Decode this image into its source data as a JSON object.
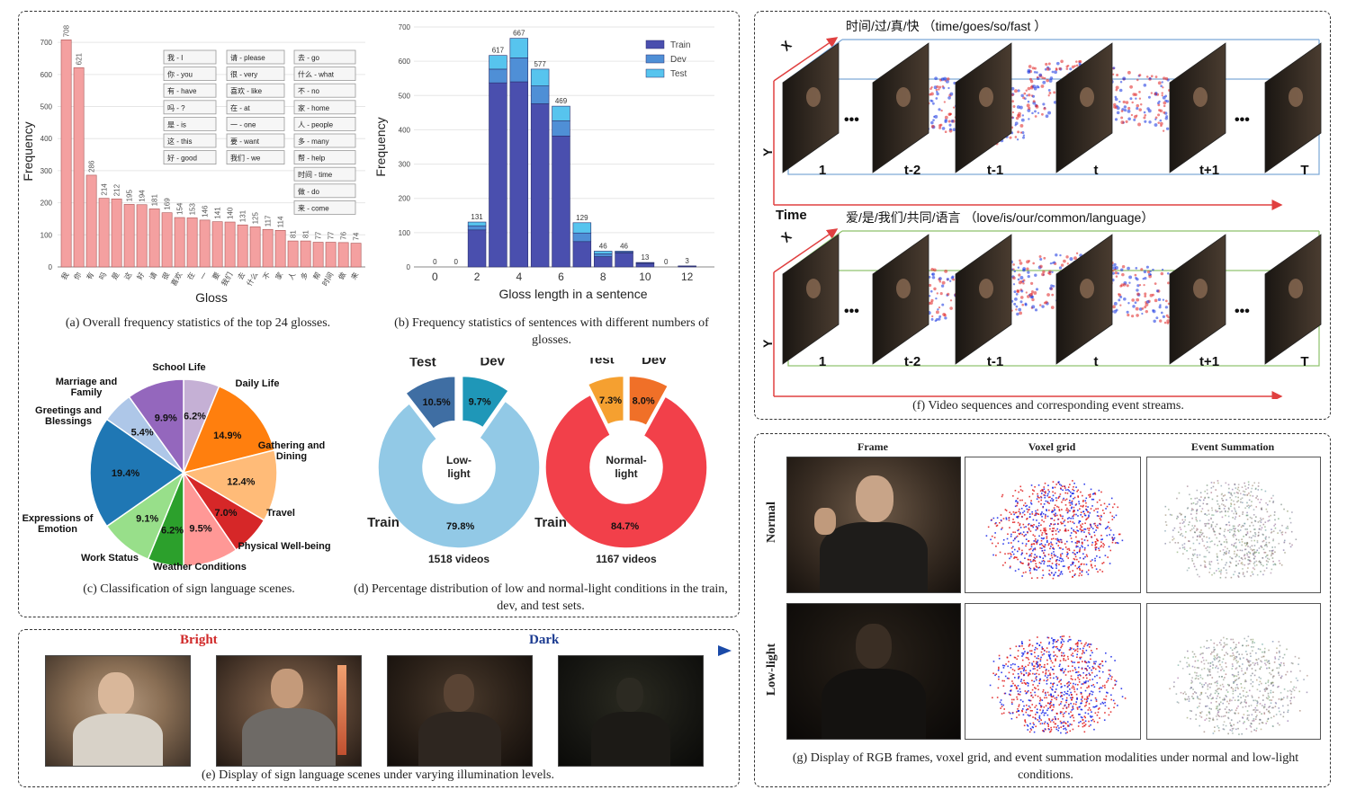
{
  "chart_data": [
    {
      "id": "a",
      "type": "bar",
      "title": "",
      "xlabel": "Gloss",
      "ylabel": "Frequency",
      "ylim": [
        0,
        720
      ],
      "yticks": [
        0,
        100,
        200,
        300,
        400,
        500,
        600,
        700
      ],
      "categories": [
        "我",
        "你",
        "有",
        "吗",
        "是",
        "这",
        "好",
        "请",
        "很",
        "喜欢",
        "在",
        "一",
        "要",
        "我们",
        "去",
        "什么",
        "不",
        "家",
        "人",
        "多",
        "帮",
        "时间",
        "做",
        "来"
      ],
      "values": [
        708,
        621,
        286,
        214,
        212,
        195,
        194,
        181,
        169,
        154,
        153,
        146,
        141,
        140,
        131,
        125,
        117,
        114,
        81,
        81,
        77,
        77,
        76,
        74
      ],
      "bar_color": "#f4a0a0",
      "legend_boxes": [
        [
          "我 - I",
          "你 - you",
          "有 - have",
          "吗 - ?",
          "是 - is",
          "这 - this",
          "好 - good"
        ],
        [
          "请 - please",
          "很 - very",
          "喜欢 - like",
          "在 - at",
          "一 - one",
          "要 - want",
          "我们 - we"
        ],
        [
          "去 - go",
          "什么 - what",
          "不 - no",
          "家 - home",
          "人 - people",
          "多 - many",
          "帮 - help",
          "时间 - time",
          "做 - do",
          "来 - come"
        ]
      ]
    },
    {
      "id": "b",
      "type": "bar",
      "stacked": true,
      "title": "",
      "xlabel": "Gloss length in a sentence",
      "ylabel": "Frequency",
      "ylim": [
        0,
        700
      ],
      "yticks": [
        0,
        100,
        200,
        300,
        400,
        500,
        600,
        700
      ],
      "xticks": [
        0,
        2,
        4,
        6,
        8,
        10,
        12
      ],
      "x": [
        0,
        1,
        2,
        3,
        4,
        5,
        6,
        7,
        8,
        9,
        10,
        11,
        12
      ],
      "totals": [
        0,
        0,
        131,
        617,
        667,
        577,
        469,
        129,
        46,
        46,
        13,
        0,
        3
      ],
      "series": [
        {
          "name": "Train",
          "color": "#4a4fae",
          "values": [
            0,
            0,
            108,
            537,
            540,
            476,
            382,
            74,
            30,
            41,
            10,
            0,
            2
          ]
        },
        {
          "name": "Dev",
          "color": "#4f8fd6",
          "values": [
            0,
            0,
            12,
            40,
            70,
            52,
            44,
            25,
            8,
            3,
            2,
            0,
            1
          ]
        },
        {
          "name": "Test",
          "color": "#57c4ee",
          "values": [
            0,
            0,
            11,
            40,
            57,
            49,
            43,
            30,
            8,
            2,
            1,
            0,
            0
          ]
        }
      ],
      "legend_position": "top-right"
    },
    {
      "id": "c",
      "type": "pie",
      "title": "",
      "slices": [
        {
          "label": "School Life",
          "value": 6.2,
          "color": "#c5b0d5"
        },
        {
          "label": "Daily Life",
          "value": 14.9,
          "color": "#ff7f0e"
        },
        {
          "label": "Gathering and Dining",
          "value": 12.4,
          "color": "#ffbb78"
        },
        {
          "label": "Travel",
          "value": 7.0,
          "color": "#d62728"
        },
        {
          "label": "Physical Well-being",
          "value": 9.5,
          "color": "#ff9896"
        },
        {
          "label": "Weather Conditions",
          "value": 6.2,
          "color": "#2ca02c"
        },
        {
          "label": "Work Status",
          "value": 9.1,
          "color": "#98df8a"
        },
        {
          "label": "Expressions of Emotion",
          "value": 19.4,
          "color": "#1f77b4"
        },
        {
          "label": "Greetings and Blessings",
          "value": 5.4,
          "color": "#aec7e8"
        },
        {
          "label": "Marriage and Family",
          "value": 9.9,
          "color": "#9467bd"
        }
      ]
    },
    {
      "id": "d1",
      "type": "pie",
      "donut": true,
      "center_label": "Low-light",
      "total_label": "1518 videos",
      "slices": [
        {
          "label": "Dev",
          "value": 9.7,
          "color": "#1f97b8",
          "explode": true
        },
        {
          "label": "Train",
          "value": 79.8,
          "color": "#92c9e6",
          "explode": false
        },
        {
          "label": "Test",
          "value": 10.5,
          "color": "#3f6ea3",
          "explode": true
        }
      ]
    },
    {
      "id": "d2",
      "type": "pie",
      "donut": true,
      "center_label": "Normal-light",
      "total_label": "1167 videos",
      "slices": [
        {
          "label": "Dev",
          "value": 8.0,
          "color": "#f07028",
          "explode": true
        },
        {
          "label": "Train",
          "value": 84.7,
          "color": "#f2404a",
          "explode": false
        },
        {
          "label": "Test",
          "value": 7.3,
          "color": "#f5a030",
          "explode": true
        }
      ]
    }
  ],
  "captions": {
    "a": "(a) Overall frequency statistics of the top 24 glosses.",
    "b": "(b) Frequency statistics of sentences with different numbers of glosses.",
    "c": "(c) Classification of sign language scenes.",
    "d": "(d) Percentage distribution of low and normal-light conditions in the train, dev, and test sets.",
    "e": "(e) Display of sign language scenes under varying illumination levels.",
    "f": "(f) Video sequences and corresponding event streams.",
    "g": "(g) Display of RGB frames, voxel grid, and event summation modalities under normal and low-light conditions."
  },
  "panel_e": {
    "bright": "Bright",
    "dark": "Dark"
  },
  "panel_f": {
    "seq1_title": "时间/过/真/快  （time/goes/so/fast ）",
    "seq2_title": "爱/是/我们/共同/语言  （love/is/our/common/language）",
    "axis_x": "X",
    "axis_y": "Y",
    "axis_time": "Time",
    "frame_labels": [
      "1",
      "t-2",
      "t-1",
      "t",
      "t+1",
      "T"
    ],
    "ellipsis": "•••"
  },
  "panel_g": {
    "col_frame": "Frame",
    "col_voxel": "Voxel grid",
    "col_event": "Event Summation",
    "row_normal": "Normal",
    "row_low": "Low-light"
  },
  "colors": {
    "arrow_red": "#e04040",
    "arrow_blue": "#1a4aa8",
    "seq1_box": "#7aa6d6",
    "seq2_box": "#8dc06a"
  }
}
